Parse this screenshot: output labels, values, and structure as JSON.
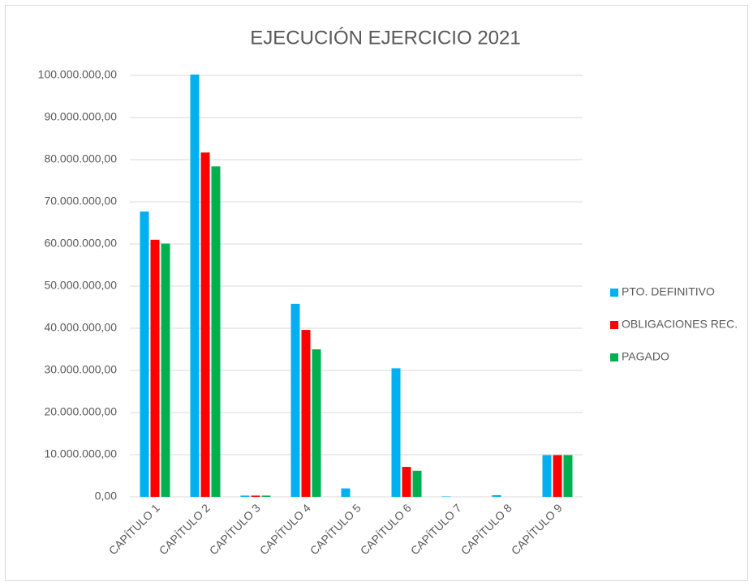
{
  "chart_data": {
    "type": "bar",
    "title": "EJECUCIÓN EJERCICIO 2021",
    "categories": [
      "CAPÍTULO 1",
      "CAPÍTULO 2",
      "CAPÍTULO 3",
      "CAPÍTULO 4",
      "CAPÍTULO 5",
      "CAPÍTULO 6",
      "CAPÍTULO 7",
      "CAPÍTULO 8",
      "CAPÍTULO 9"
    ],
    "series": [
      {
        "name": "PTO. DEFINITIVO",
        "color": "#00b0f0",
        "values": [
          67700000,
          100200000,
          300000,
          45800000,
          2000000,
          30500000,
          100000,
          400000,
          9900000
        ]
      },
      {
        "name": "OBLIGACIONES REC.",
        "color": "#ff0000",
        "values": [
          61000000,
          81700000,
          300000,
          39600000,
          0,
          7100000,
          0,
          0,
          9900000
        ]
      },
      {
        "name": "PAGADO",
        "color": "#00b050",
        "values": [
          60100000,
          78400000,
          300000,
          35000000,
          0,
          6200000,
          0,
          0,
          9900000
        ]
      }
    ],
    "ylim": [
      0,
      100000000
    ],
    "yticks": [
      {
        "value": 0,
        "label": "0,00"
      },
      {
        "value": 10000000,
        "label": "10.000.000,00"
      },
      {
        "value": 20000000,
        "label": "20.000.000,00"
      },
      {
        "value": 30000000,
        "label": "30.000.000,00"
      },
      {
        "value": 40000000,
        "label": "40.000.000,00"
      },
      {
        "value": 50000000,
        "label": "50.000.000,00"
      },
      {
        "value": 60000000,
        "label": "60.000.000,00"
      },
      {
        "value": 70000000,
        "label": "70.000.000,00"
      },
      {
        "value": 80000000,
        "label": "80.000.000,00"
      },
      {
        "value": 90000000,
        "label": "90.000.000,00"
      },
      {
        "value": 100000000,
        "label": "100.000.000,00"
      }
    ],
    "grid": true,
    "legend": "right"
  }
}
